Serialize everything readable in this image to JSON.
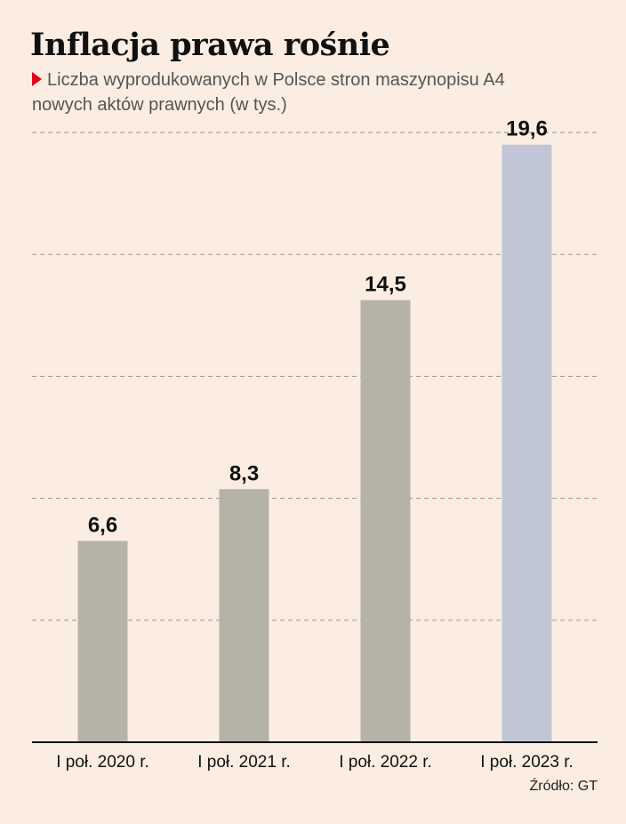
{
  "title": "Inflacja prawa rośnie",
  "subtitle_line1": "Liczba wyprodukowanych w Polsce stron maszynopisu A4",
  "subtitle_line2": "nowych aktów prawnych (w tys.)",
  "source": "Źródło: GT",
  "colors": {
    "bar_default": "#b5b3a8",
    "bar_highlight": "#c0c6d5",
    "marker": "#e3001b",
    "background": "#fbede1"
  },
  "chart_data": {
    "type": "bar",
    "categories": [
      "I poł. 2020 r.",
      "I poł. 2021 r.",
      "I poł. 2022 r.",
      "I poł. 2023 r."
    ],
    "values": [
      6.6,
      8.3,
      14.5,
      19.6
    ],
    "value_labels": [
      "6,6",
      "8,3",
      "14,5",
      "19,6"
    ],
    "highlight_index": 3,
    "ylim": [
      0,
      20
    ],
    "grid": true,
    "gridlines": [
      0,
      4,
      8,
      12,
      16,
      20
    ]
  }
}
